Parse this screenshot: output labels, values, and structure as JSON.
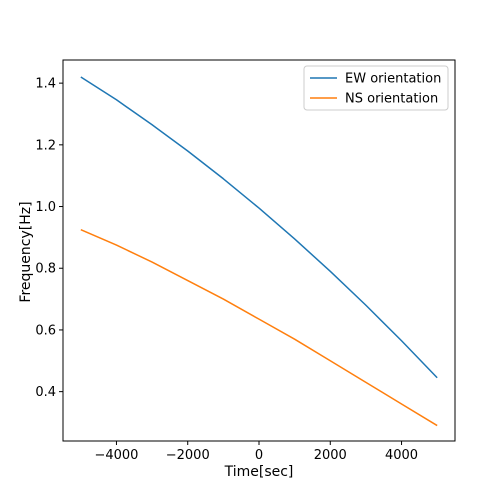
{
  "chart_data": {
    "type": "line",
    "title": "",
    "xlabel": "Time[sec]",
    "ylabel": "Frequency[Hz]",
    "xlim": [
      -5500,
      5500
    ],
    "ylim": [
      0.24,
      1.475
    ],
    "xticks": [
      -4000,
      -2000,
      0,
      2000,
      4000
    ],
    "xtick_labels": [
      "−4000",
      "−2000",
      "0",
      "2000",
      "4000"
    ],
    "yticks": [
      0.4,
      0.6,
      0.8,
      1.0,
      1.2,
      1.4
    ],
    "ytick_labels": [
      "0.4",
      "0.6",
      "0.8",
      "1.0",
      "1.2",
      "1.4"
    ],
    "grid": false,
    "legend": "top-right",
    "x": [
      -5000,
      -4000,
      -3000,
      -2000,
      -1000,
      0,
      1000,
      2000,
      3000,
      4000,
      5000
    ],
    "series": [
      {
        "name": "EW orientation",
        "color": "#1f77b4",
        "values": [
          1.42,
          1.346,
          1.265,
          1.18,
          1.09,
          0.995,
          0.895,
          0.79,
          0.68,
          0.565,
          0.445
        ]
      },
      {
        "name": "NS orientation",
        "color": "#ff7f0e",
        "values": [
          0.925,
          0.875,
          0.82,
          0.76,
          0.7,
          0.635,
          0.57,
          0.5,
          0.43,
          0.36,
          0.29
        ]
      }
    ]
  }
}
